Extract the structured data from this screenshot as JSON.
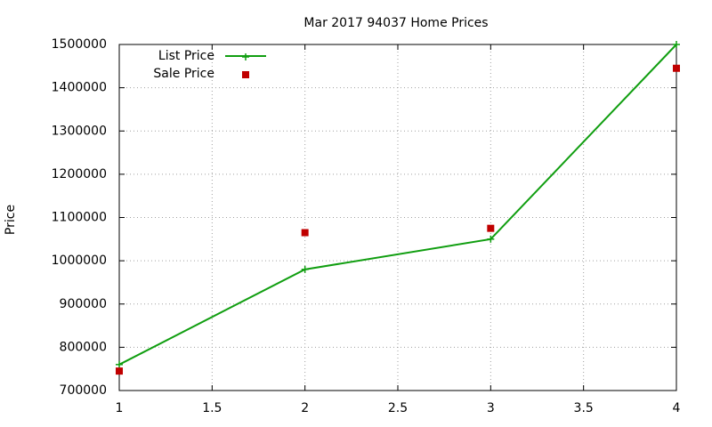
{
  "chart_data": {
    "type": "line",
    "title": "Mar 2017 94037 Home Prices",
    "y_label": "Price",
    "x": [
      1,
      2,
      3,
      4
    ],
    "series": [
      {
        "name": "List Price",
        "color": "#109e10",
        "mode": "lines+points",
        "marker": "plus",
        "values": [
          760000,
          980000,
          1050000,
          1500000
        ]
      },
      {
        "name": "Sale Price",
        "color": "#c00000",
        "mode": "points",
        "marker": "square",
        "values": [
          745000,
          1065000,
          1075000,
          1445000
        ]
      }
    ],
    "xlim": [
      1,
      4
    ],
    "xticks": [
      1,
      1.5,
      2,
      2.5,
      3,
      3.5,
      4
    ],
    "ylim": [
      700000,
      1500000
    ],
    "yticks": [
      700000,
      800000,
      900000,
      1000000,
      1100000,
      1200000,
      1300000,
      1400000,
      1500000
    ],
    "grid": true,
    "legend": "top-left"
  }
}
